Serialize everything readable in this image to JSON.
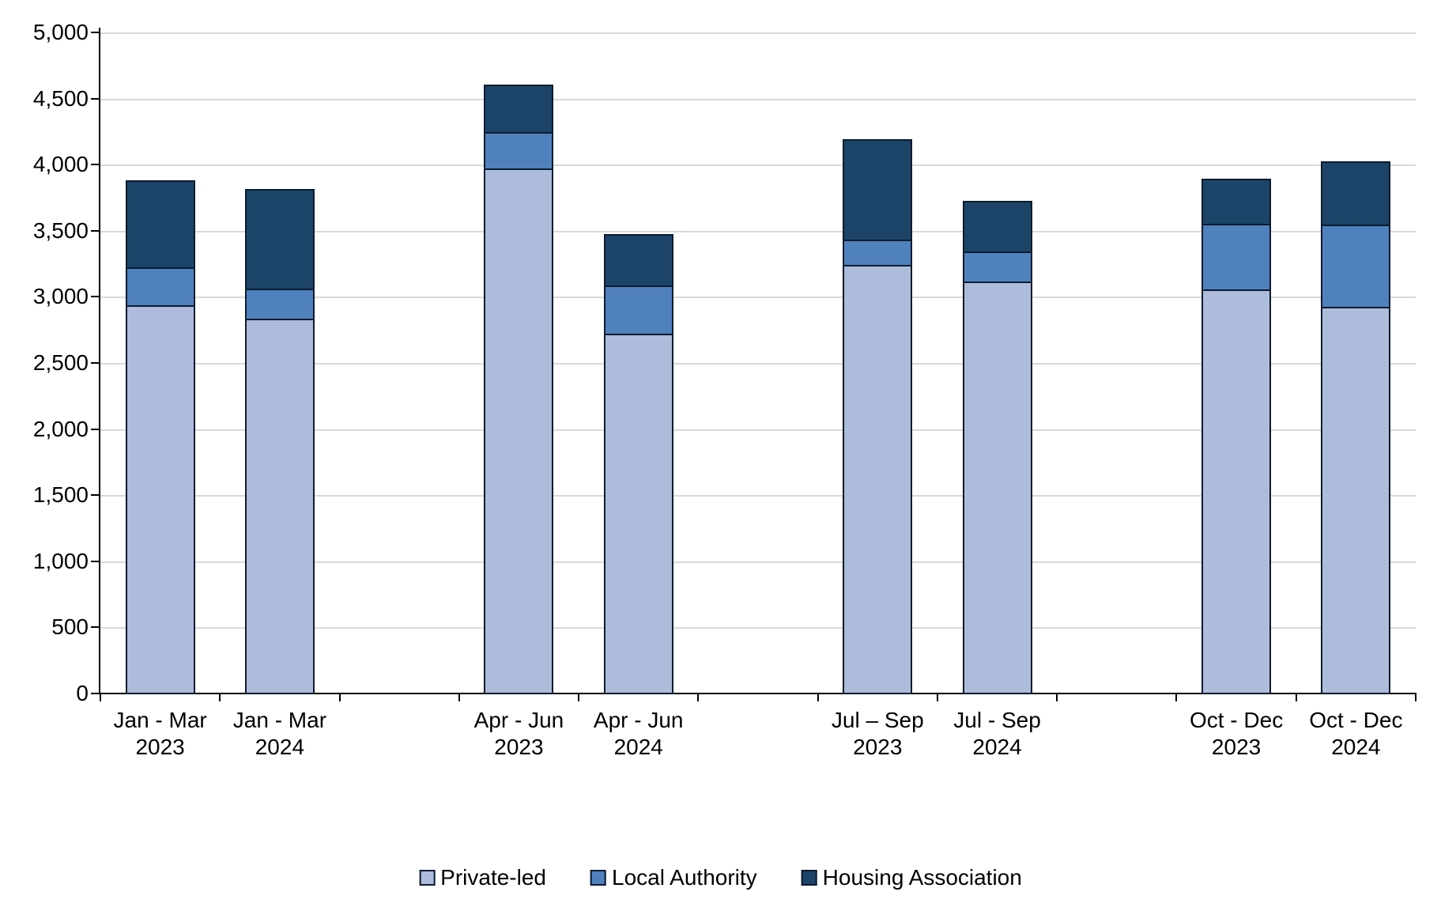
{
  "chart_data": {
    "type": "bar",
    "stacked": true,
    "title": "",
    "xlabel": "",
    "ylabel": "",
    "ylim": [
      0,
      5000
    ],
    "ytick_step": 500,
    "y_tick_labels": [
      "0",
      "500",
      "1,000",
      "1,500",
      "2,000",
      "2,500",
      "3,000",
      "3,500",
      "4,000",
      "4,500",
      "5,000"
    ],
    "grid": true,
    "gridline_color": "#d9d9d9",
    "axis_color": "#000000",
    "bar_outline_color": "#0d1b2e",
    "legend_position": "bottom",
    "total_slots": 11,
    "categories": [
      {
        "quarter": "Jan - Mar",
        "year": "2023",
        "slot": 0
      },
      {
        "quarter": "Jan - Mar",
        "year": "2024",
        "slot": 1
      },
      {
        "quarter": "Apr - Jun",
        "year": "2023",
        "slot": 3
      },
      {
        "quarter": "Apr - Jun",
        "year": "2024",
        "slot": 4
      },
      {
        "quarter": "Jul – Sep",
        "year": "2023",
        "slot": 6
      },
      {
        "quarter": "Jul - Sep",
        "year": "2024",
        "slot": 7
      },
      {
        "quarter": "Oct - Dec",
        "year": "2023",
        "slot": 9
      },
      {
        "quarter": "Oct - Dec",
        "year": "2024",
        "slot": 10
      }
    ],
    "series": [
      {
        "name": "Private-led",
        "color": "#aebcdb",
        "values": [
          2940,
          2840,
          3980,
          2730,
          3250,
          3120,
          3060,
          2930
        ]
      },
      {
        "name": "Local Authority",
        "color": "#4f81bd",
        "values": [
          290,
          230,
          270,
          360,
          190,
          230,
          500,
          620
        ]
      },
      {
        "name": "Housing Association",
        "color": "#1b4468",
        "values": [
          660,
          750,
          360,
          390,
          760,
          380,
          340,
          480
        ]
      }
    ],
    "totals": [
      3890,
      3820,
      4610,
      3480,
      4200,
      3730,
      3900,
      4030
    ]
  }
}
